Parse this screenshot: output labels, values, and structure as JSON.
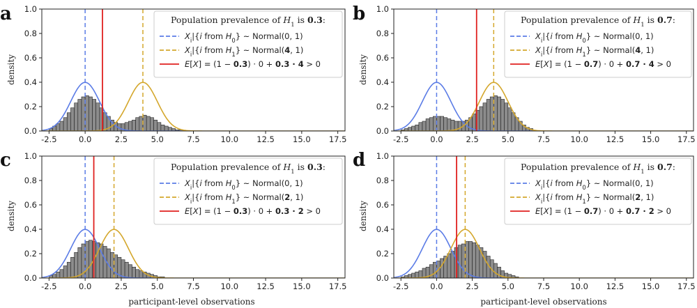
{
  "colors": {
    "h0": "#5b7ce6",
    "h1": "#d4a72c",
    "mean": "#e0201f",
    "bar": "#8c8c8c",
    "bar_edge": "#222222"
  },
  "figure": {
    "xlabel": "participant-level observations",
    "ylabel": "density"
  },
  "chart_data": [
    {
      "panel": "a",
      "type": "bar",
      "title": "",
      "xlabel": "",
      "ylabel": "density",
      "xlim": [
        -3,
        18
      ],
      "ylim": [
        0,
        1.0
      ],
      "xticks": [
        "-2.5",
        "0.0",
        "2.5",
        "5.0",
        "7.5",
        "10.0",
        "12.5",
        "15.0",
        "17.5"
      ],
      "yticks": [
        "0.0",
        "0.2",
        "0.4",
        "0.6",
        "0.8",
        "1.0"
      ],
      "prevalence": 0.3,
      "h1_mean": 4,
      "expected_value": 1.2,
      "legend": {
        "title": [
          "Population prevalence of ",
          "H",
          "1",
          " is ",
          "0.3",
          ":"
        ],
        "entries": [
          {
            "series": "h0",
            "parts": [
              "X",
              "i",
              "|{",
              "i",
              " from ",
              "H",
              "0",
              "} ~ Normal(0, 1)"
            ]
          },
          {
            "series": "h1",
            "parts": [
              "X",
              "i",
              "|{",
              "i",
              " from ",
              "H",
              "1",
              "} ~ Normal(",
              "4",
              ", 1)"
            ]
          },
          {
            "series": "mean",
            "parts": [
              "E",
              "[",
              "X",
              "] = (1 − ",
              "0.3",
              ") · 0 + ",
              "0.3 · 4",
              " > 0"
            ]
          }
        ]
      },
      "series": [
        {
          "name": "Normal(0,1)",
          "kind": "density",
          "mean": 0,
          "sd": 1,
          "color_key": "h0"
        },
        {
          "name": "Normal(4,1)",
          "kind": "density",
          "mean": 4,
          "sd": 1,
          "color_key": "h1"
        },
        {
          "name": "histogram",
          "kind": "hist",
          "x_start": -2.5,
          "bin_width": 0.25,
          "values": [
            0.02,
            0.04,
            0.06,
            0.08,
            0.11,
            0.15,
            0.19,
            0.23,
            0.26,
            0.28,
            0.29,
            0.28,
            0.26,
            0.23,
            0.19,
            0.15,
            0.12,
            0.09,
            0.07,
            0.06,
            0.06,
            0.07,
            0.08,
            0.09,
            0.11,
            0.12,
            0.13,
            0.12,
            0.11,
            0.09,
            0.07,
            0.05,
            0.04,
            0.03,
            0.02,
            0.01,
            0.01
          ]
        }
      ]
    },
    {
      "panel": "b",
      "type": "bar",
      "title": "",
      "xlabel": "",
      "ylabel": "density",
      "xlim": [
        -3,
        18
      ],
      "ylim": [
        0,
        1.0
      ],
      "xticks": [
        "-2.5",
        "0.0",
        "2.5",
        "5.0",
        "7.5",
        "10.0",
        "12.5",
        "15.0",
        "17.5"
      ],
      "yticks": [
        "0.0",
        "0.2",
        "0.4",
        "0.6",
        "0.8",
        "1.0"
      ],
      "prevalence": 0.7,
      "h1_mean": 4,
      "expected_value": 2.8,
      "legend": {
        "title": [
          "Population prevalence of ",
          "H",
          "1",
          " is ",
          "0.7",
          ":"
        ],
        "entries": [
          {
            "series": "h0",
            "parts": [
              "X",
              "i",
              "|{",
              "i",
              " from ",
              "H",
              "0",
              "} ~ Normal(0, 1)"
            ]
          },
          {
            "series": "h1",
            "parts": [
              "X",
              "i",
              "|{",
              "i",
              " from ",
              "H",
              "1",
              "} ~ Normal(",
              "4",
              ", 1)"
            ]
          },
          {
            "series": "mean",
            "parts": [
              "E",
              "[",
              "X",
              "] = (1 − ",
              "0.7",
              ") · 0 + ",
              "0.7 · 4",
              " > 0"
            ]
          }
        ]
      },
      "series": [
        {
          "name": "Normal(0,1)",
          "kind": "density",
          "mean": 0,
          "sd": 1,
          "color_key": "h0"
        },
        {
          "name": "Normal(4,1)",
          "kind": "density",
          "mean": 4,
          "sd": 1,
          "color_key": "h1"
        },
        {
          "name": "histogram",
          "kind": "hist",
          "x_start": -2.5,
          "bin_width": 0.25,
          "values": [
            0.01,
            0.02,
            0.03,
            0.04,
            0.05,
            0.07,
            0.08,
            0.1,
            0.11,
            0.12,
            0.12,
            0.12,
            0.11,
            0.1,
            0.09,
            0.08,
            0.08,
            0.08,
            0.09,
            0.11,
            0.14,
            0.17,
            0.2,
            0.23,
            0.26,
            0.28,
            0.29,
            0.28,
            0.26,
            0.23,
            0.19,
            0.15,
            0.11,
            0.08,
            0.05,
            0.03,
            0.02
          ]
        }
      ]
    },
    {
      "panel": "c",
      "type": "bar",
      "title": "",
      "xlabel": "participant-level observations",
      "ylabel": "density",
      "xlim": [
        -3,
        18
      ],
      "ylim": [
        0,
        1.0
      ],
      "xticks": [
        "-2.5",
        "0.0",
        "2.5",
        "5.0",
        "7.5",
        "10.0",
        "12.5",
        "15.0",
        "17.5"
      ],
      "yticks": [
        "0.0",
        "0.2",
        "0.4",
        "0.6",
        "0.8",
        "1.0"
      ],
      "prevalence": 0.3,
      "h1_mean": 2,
      "expected_value": 0.6,
      "legend": {
        "title": [
          "Population prevalence of ",
          "H",
          "1",
          " is ",
          "0.3",
          ":"
        ],
        "entries": [
          {
            "series": "h0",
            "parts": [
              "X",
              "i",
              "|{",
              "i",
              " from ",
              "H",
              "0",
              "} ~ Normal(0, 1)"
            ]
          },
          {
            "series": "h1",
            "parts": [
              "X",
              "i",
              "|{",
              "i",
              " from ",
              "H",
              "1",
              "} ~ Normal(",
              "2",
              ", 1)"
            ]
          },
          {
            "series": "mean",
            "parts": [
              "E",
              "[",
              "X",
              "] = (1 − ",
              "0.3",
              ") · 0 + ",
              "0.3 · 2",
              " > 0"
            ]
          }
        ]
      },
      "series": [
        {
          "name": "Normal(0,1)",
          "kind": "density",
          "mean": 0,
          "sd": 1,
          "color_key": "h0"
        },
        {
          "name": "Normal(2,1)",
          "kind": "density",
          "mean": 2,
          "sd": 1,
          "color_key": "h1"
        },
        {
          "name": "histogram",
          "kind": "hist",
          "x_start": -2.5,
          "bin_width": 0.25,
          "values": [
            0.02,
            0.03,
            0.05,
            0.07,
            0.1,
            0.13,
            0.17,
            0.21,
            0.25,
            0.28,
            0.3,
            0.31,
            0.3,
            0.29,
            0.28,
            0.26,
            0.24,
            0.21,
            0.19,
            0.17,
            0.15,
            0.13,
            0.11,
            0.09,
            0.07,
            0.06,
            0.05,
            0.04,
            0.03,
            0.02,
            0.01,
            0.01
          ]
        }
      ]
    },
    {
      "panel": "d",
      "type": "bar",
      "title": "",
      "xlabel": "participant-level observations",
      "ylabel": "density",
      "xlim": [
        -3,
        18
      ],
      "ylim": [
        0,
        1.0
      ],
      "xticks": [
        "-2.5",
        "0.0",
        "2.5",
        "5.0",
        "7.5",
        "10.0",
        "12.5",
        "15.0",
        "17.5"
      ],
      "yticks": [
        "0.0",
        "0.2",
        "0.4",
        "0.6",
        "0.8",
        "1.0"
      ],
      "prevalence": 0.7,
      "h1_mean": 2,
      "expected_value": 1.4,
      "legend": {
        "title": [
          "Population prevalence of ",
          "H",
          "1",
          " is ",
          "0.7",
          ":"
        ],
        "entries": [
          {
            "series": "h0",
            "parts": [
              "X",
              "i",
              "|{",
              "i",
              " from ",
              "H",
              "0",
              "} ~ Normal(0, 1)"
            ]
          },
          {
            "series": "h1",
            "parts": [
              "X",
              "i",
              "|{",
              "i",
              " from ",
              "H",
              "1",
              "} ~ Normal(",
              "2",
              ", 1)"
            ]
          },
          {
            "series": "mean",
            "parts": [
              "E",
              "[",
              "X",
              "] = (1 − ",
              "0.7",
              ") · 0 + ",
              "0.7 · 2",
              " > 0"
            ]
          }
        ]
      },
      "series": [
        {
          "name": "Normal(0,1)",
          "kind": "density",
          "mean": 0,
          "sd": 1,
          "color_key": "h0"
        },
        {
          "name": "Normal(2,1)",
          "kind": "density",
          "mean": 2,
          "sd": 1,
          "color_key": "h1"
        },
        {
          "name": "histogram",
          "kind": "hist",
          "x_start": -2.5,
          "bin_width": 0.25,
          "values": [
            0.01,
            0.02,
            0.03,
            0.04,
            0.05,
            0.06,
            0.08,
            0.09,
            0.11,
            0.13,
            0.14,
            0.16,
            0.18,
            0.2,
            0.22,
            0.25,
            0.27,
            0.28,
            0.3,
            0.3,
            0.29,
            0.27,
            0.25,
            0.22,
            0.18,
            0.15,
            0.12,
            0.09,
            0.06,
            0.04,
            0.03,
            0.02,
            0.01
          ]
        }
      ]
    }
  ]
}
